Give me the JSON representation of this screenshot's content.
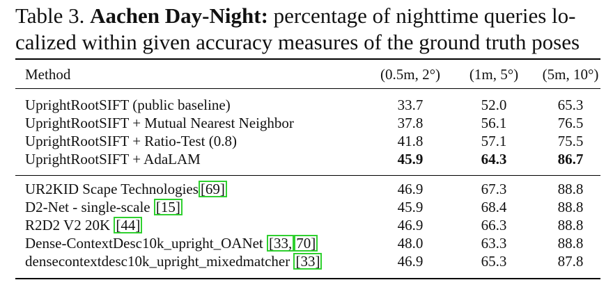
{
  "caption": {
    "label": "Table 3.",
    "title": "Aachen Day-Night:",
    "text_line1": "percentage of nighttime queries lo-",
    "text_line2": "calized within given accuracy measures of the ground truth poses"
  },
  "table": {
    "headers": [
      "Method",
      "(0.5m, 2°)",
      "(1m, 5°)",
      "(5m, 10°)"
    ],
    "group1": [
      {
        "method": "UprightRootSIFT (public baseline)",
        "v": [
          "33.7",
          "52.0",
          "65.3"
        ],
        "bold": false
      },
      {
        "method": "UprightRootSIFT + Mutual Nearest Neighbor",
        "v": [
          "37.8",
          "56.1",
          "76.5"
        ],
        "bold": false
      },
      {
        "method": "UprightRootSIFT + Ratio-Test (0.8)",
        "v": [
          "41.8",
          "57.1",
          "75.5"
        ],
        "bold": false
      },
      {
        "method": "UprightRootSIFT + AdaLAM",
        "v": [
          "45.9",
          "64.3",
          "86.7"
        ],
        "bold": true
      }
    ],
    "group2": [
      {
        "method": "UR2KID Scape Technologies",
        "cites": [
          "[69]"
        ],
        "v": [
          "46.9",
          "67.3",
          "88.8"
        ]
      },
      {
        "method": "D2-Net - single-scale ",
        "cites": [
          "[15]"
        ],
        "v": [
          "45.9",
          "68.4",
          "88.8"
        ]
      },
      {
        "method": "R2D2 V2 20K ",
        "cites": [
          "[44]"
        ],
        "v": [
          "46.9",
          "66.3",
          "88.8"
        ]
      },
      {
        "method": "Dense-ContextDesc10k_upright_OANet ",
        "cites": [
          "[33,",
          "70]"
        ],
        "v": [
          "48.0",
          "63.3",
          "88.8"
        ]
      },
      {
        "method": "densecontextdesc10k_upright_mixedmatcher ",
        "cites": [
          "[33]"
        ],
        "v": [
          "46.9",
          "65.3",
          "87.8"
        ]
      }
    ]
  }
}
